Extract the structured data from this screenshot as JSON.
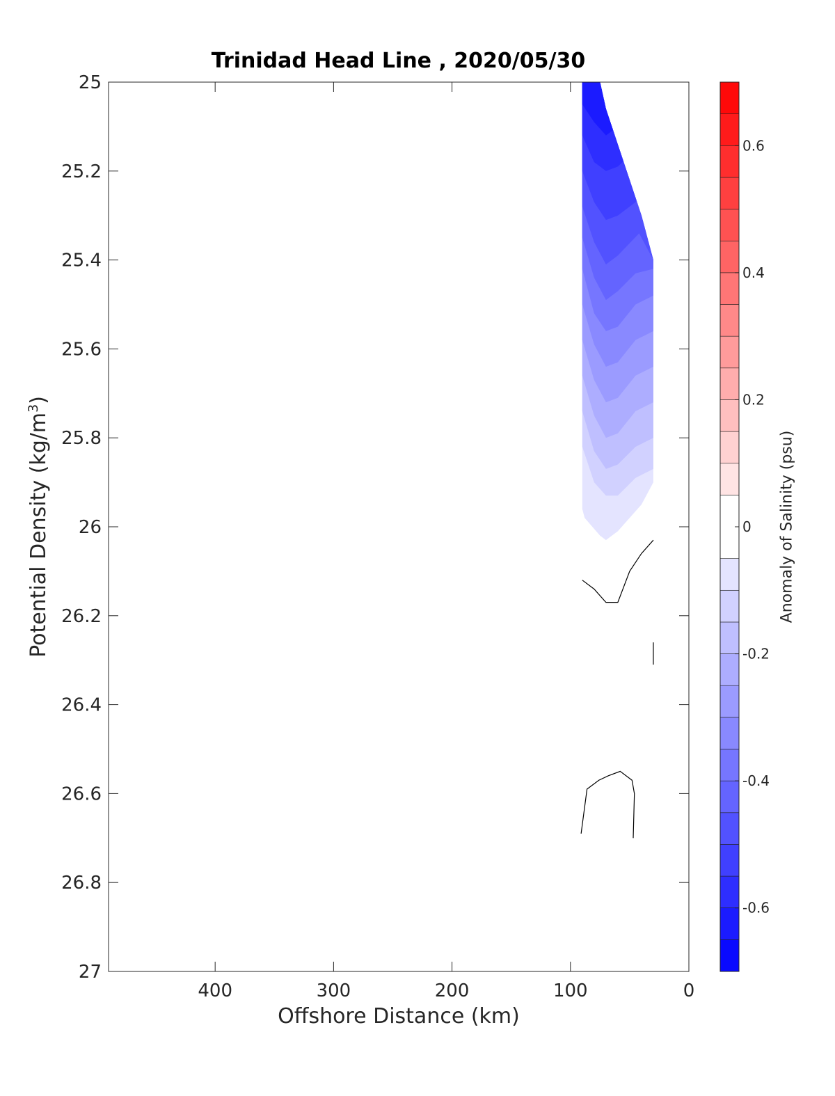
{
  "chart_data": {
    "type": "heatmap",
    "title": "Trinidad Head Line , 2020/05/30",
    "xlabel": "Offshore Distance (km)",
    "ylabel_main": "Potential Density (kg/m",
    "ylabel_sup": "3",
    "ylabel_tail": ")",
    "x_axis": {
      "range": [
        490,
        0
      ],
      "reversed": true,
      "ticks": [
        400,
        300,
        200,
        100,
        0
      ],
      "tick_labels": [
        "400",
        "300",
        "200",
        "100",
        "0"
      ]
    },
    "y_axis": {
      "range": [
        25,
        27
      ],
      "reversed": true,
      "ticks": [
        25,
        25.2,
        25.4,
        25.6,
        25.8,
        26,
        26.2,
        26.4,
        26.6,
        26.8,
        27
      ],
      "tick_labels": [
        "25",
        "25.2",
        "25.4",
        "25.6",
        "25.8",
        "26",
        "26.2",
        "26.4",
        "26.6",
        "26.8",
        "27"
      ]
    },
    "grid": false,
    "colorbar": {
      "label": "Anomaly of Salinity (psu)",
      "range": [
        -0.7,
        0.7
      ],
      "levels": [
        -0.7,
        -0.65,
        -0.6,
        -0.55,
        -0.5,
        -0.45,
        -0.4,
        -0.35,
        -0.3,
        -0.25,
        -0.2,
        -0.15,
        -0.1,
        -0.05,
        0.05,
        0.1,
        0.15,
        0.2,
        0.25,
        0.3,
        0.35,
        0.4,
        0.45,
        0.5,
        0.55,
        0.6,
        0.65,
        0.7
      ],
      "ticks": [
        0.6,
        0.4,
        0.2,
        0,
        -0.2,
        -0.4,
        -0.6
      ],
      "tick_labels": [
        "0.6",
        "0.4",
        "0.2",
        "0",
        "-0.2",
        "-0.4",
        "-0.6"
      ],
      "negative_color": "#0000ff",
      "positive_color": "#ff0000",
      "neutral_color": "#ffffff"
    },
    "data_extent": {
      "x": [
        90,
        88,
        75,
        70,
        60,
        40,
        30
      ],
      "top_density": [
        25.0,
        25.0,
        25.0,
        25.06,
        25.14,
        25.3,
        25.4
      ],
      "bottom_density": [
        25.96,
        25.98,
        26.02,
        26.03,
        26.01,
        25.95,
        25.9
      ]
    },
    "filled_bands": [
      {
        "level": -0.65,
        "boundary": [
          [
            90,
            25.0
          ],
          [
            75,
            25.0
          ],
          [
            70,
            25.06
          ],
          [
            60,
            25.05
          ]
        ]
      },
      {
        "level": -0.6,
        "boundary": [
          [
            90,
            25.05
          ],
          [
            80,
            25.09
          ],
          [
            70,
            25.12
          ],
          [
            60,
            25.1
          ],
          [
            50,
            25.05
          ]
        ]
      },
      {
        "level": -0.55,
        "boundary": [
          [
            90,
            25.12
          ],
          [
            80,
            25.18
          ],
          [
            70,
            25.2
          ],
          [
            60,
            25.19
          ],
          [
            48,
            25.16
          ]
        ]
      },
      {
        "level": -0.5,
        "boundary": [
          [
            90,
            25.2
          ],
          [
            80,
            25.27
          ],
          [
            70,
            25.31
          ],
          [
            60,
            25.3
          ],
          [
            45,
            25.27
          ],
          [
            40,
            25.24
          ]
        ]
      },
      {
        "level": -0.45,
        "boundary": [
          [
            90,
            25.28
          ],
          [
            80,
            25.36
          ],
          [
            70,
            25.41
          ],
          [
            60,
            25.39
          ],
          [
            42,
            25.34
          ],
          [
            30,
            25.4
          ]
        ]
      },
      {
        "level": -0.4,
        "boundary": [
          [
            90,
            25.35
          ],
          [
            80,
            25.44
          ],
          [
            70,
            25.49
          ],
          [
            60,
            25.47
          ],
          [
            45,
            25.43
          ],
          [
            30,
            25.42
          ]
        ]
      },
      {
        "level": -0.35,
        "boundary": [
          [
            90,
            25.42
          ],
          [
            80,
            25.52
          ],
          [
            70,
            25.56
          ],
          [
            60,
            25.55
          ],
          [
            45,
            25.5
          ],
          [
            30,
            25.48
          ]
        ]
      },
      {
        "level": -0.3,
        "boundary": [
          [
            90,
            25.5
          ],
          [
            80,
            25.59
          ],
          [
            70,
            25.64
          ],
          [
            60,
            25.63
          ],
          [
            45,
            25.58
          ],
          [
            30,
            25.56
          ]
        ]
      },
      {
        "level": -0.25,
        "boundary": [
          [
            90,
            25.58
          ],
          [
            80,
            25.67
          ],
          [
            70,
            25.72
          ],
          [
            60,
            25.71
          ],
          [
            45,
            25.66
          ],
          [
            30,
            25.64
          ]
        ]
      },
      {
        "level": -0.2,
        "boundary": [
          [
            90,
            25.66
          ],
          [
            80,
            25.75
          ],
          [
            70,
            25.8
          ],
          [
            60,
            25.79
          ],
          [
            45,
            25.74
          ],
          [
            30,
            25.72
          ]
        ]
      },
      {
        "level": -0.15,
        "boundary": [
          [
            90,
            25.74
          ],
          [
            80,
            25.83
          ],
          [
            70,
            25.87
          ],
          [
            60,
            25.86
          ],
          [
            45,
            25.82
          ],
          [
            30,
            25.8
          ]
        ]
      },
      {
        "level": -0.1,
        "boundary": [
          [
            90,
            25.82
          ],
          [
            80,
            25.9
          ],
          [
            70,
            25.93
          ],
          [
            60,
            25.93
          ],
          [
            45,
            25.89
          ],
          [
            30,
            25.87
          ]
        ]
      }
    ],
    "zero_contours": [
      {
        "level": 0,
        "points": [
          [
            90,
            26.12
          ],
          [
            80,
            26.14
          ],
          [
            70,
            26.17
          ],
          [
            60,
            26.17
          ],
          [
            50,
            26.1
          ],
          [
            40,
            26.06
          ],
          [
            30,
            26.03
          ]
        ]
      },
      {
        "level": 0,
        "points": [
          [
            91,
            26.69
          ],
          [
            86,
            26.59
          ],
          [
            76,
            26.57
          ],
          [
            68,
            26.56
          ],
          [
            58,
            26.55
          ],
          [
            48,
            26.57
          ],
          [
            46,
            26.6
          ],
          [
            47,
            26.7
          ]
        ]
      },
      {
        "level": 0,
        "points": [
          [
            30,
            26.26
          ],
          [
            30,
            26.31
          ]
        ]
      }
    ]
  }
}
